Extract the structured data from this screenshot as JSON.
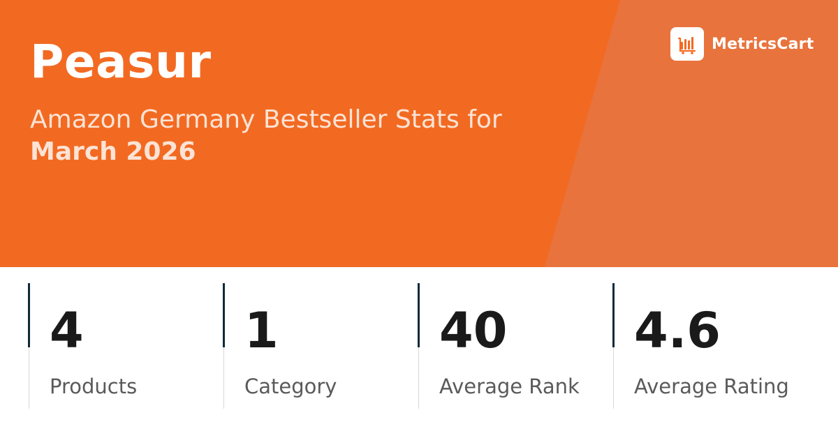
{
  "header": {
    "title": "Peasur",
    "subtitle_line1": "Amazon Germany Bestseller Stats for",
    "subtitle_line2": "March 2026"
  },
  "logo": {
    "name": "MetricsCart",
    "icon": "bar-chart-cart-icon"
  },
  "stats": [
    {
      "value": "4",
      "label": "Products"
    },
    {
      "value": "1",
      "label": "Category"
    },
    {
      "value": "40",
      "label": "Average Rank"
    },
    {
      "value": "4.6",
      "label": "Average Rating"
    }
  ],
  "colors": {
    "hero": "#F26A22",
    "hero_slant": "#E8733D",
    "accent_rule": "#0F2A3A"
  }
}
